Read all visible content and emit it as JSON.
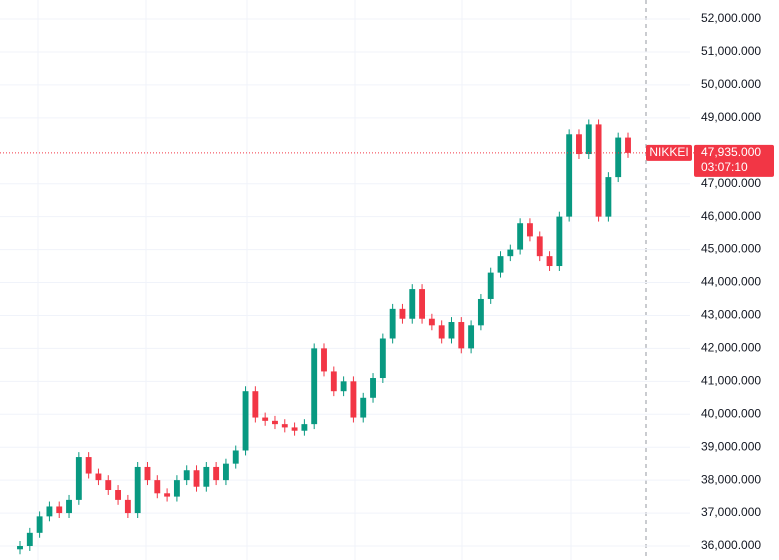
{
  "chart_data": {
    "type": "candlestick",
    "symbol": "NIKKEI",
    "countdown": "03:07:10",
    "last_price": {
      "value": 47935,
      "label": "47,935.000"
    },
    "up_color": "#089981",
    "down_color": "#f23645",
    "grid": true,
    "ylim": [
      35575,
      52577
    ],
    "yticks": [
      {
        "value": 36000,
        "label": "36,000.000"
      },
      {
        "value": 37000,
        "label": "37,000.000"
      },
      {
        "value": 38000,
        "label": "38,000.000"
      },
      {
        "value": 39000,
        "label": "39,000.000"
      },
      {
        "value": 40000,
        "label": "40,000.000"
      },
      {
        "value": 41000,
        "label": "41,000.000"
      },
      {
        "value": 42000,
        "label": "42,000.000"
      },
      {
        "value": 43000,
        "label": "43,000.000"
      },
      {
        "value": 44000,
        "label": "44,000.000"
      },
      {
        "value": 45000,
        "label": "45,000.000"
      },
      {
        "value": 46000,
        "label": "46,000.000"
      },
      {
        "value": 47000,
        "label": "47,000.000"
      },
      {
        "value": 49000,
        "label": "49,000.000"
      },
      {
        "value": 50000,
        "label": "50,000.000"
      },
      {
        "value": 51000,
        "label": "51,000.000"
      },
      {
        "value": 52000,
        "label": "52,000.000"
      }
    ],
    "open": [
      35900,
      36000,
      36400,
      36900,
      37200,
      37000,
      37400,
      38700,
      38200,
      38000,
      37700,
      37400,
      37000,
      38400,
      38000,
      37600,
      37500,
      38000,
      38300,
      37800,
      38400,
      38000,
      38500,
      38900,
      40700,
      39900,
      39800,
      39700,
      39600,
      39500,
      39700,
      42000,
      41300,
      40700,
      41000,
      39900,
      40500,
      41100,
      42300,
      43200,
      42900,
      43800,
      42900,
      42700,
      42300,
      42800,
      42000,
      42700,
      43500,
      44300,
      44800,
      45000,
      45800,
      45400,
      44800,
      44500,
      46000,
      48500,
      47900,
      48800,
      46000,
      47200,
      48400
    ],
    "high": [
      36150,
      36550,
      37050,
      37350,
      37350,
      37550,
      38850,
      38850,
      38350,
      38150,
      37850,
      37550,
      38550,
      38550,
      38150,
      37750,
      38150,
      38450,
      38450,
      38550,
      38550,
      38650,
      39050,
      40850,
      40850,
      40050,
      39950,
      39850,
      39750,
      39850,
      42150,
      42150,
      41450,
      41150,
      41150,
      40650,
      41250,
      42450,
      43350,
      43350,
      43950,
      43950,
      43050,
      42850,
      42950,
      42950,
      42850,
      43650,
      44450,
      44950,
      45150,
      45950,
      45950,
      45550,
      44950,
      46150,
      48650,
      48650,
      48950,
      48950,
      47350,
      48550,
      48550
    ],
    "low": [
      35750,
      35850,
      36250,
      36750,
      36850,
      36850,
      37250,
      38050,
      37850,
      37550,
      37250,
      36850,
      36850,
      37850,
      37450,
      37350,
      37350,
      37850,
      37650,
      37650,
      37850,
      37850,
      38350,
      38750,
      39750,
      39650,
      39550,
      39450,
      39350,
      39350,
      39550,
      41150,
      40550,
      40550,
      39750,
      39750,
      40350,
      40950,
      42150,
      42750,
      42750,
      42750,
      42550,
      42150,
      42150,
      41850,
      41850,
      42550,
      43350,
      44150,
      44650,
      44850,
      45250,
      44650,
      44350,
      44350,
      45850,
      47750,
      47750,
      45850,
      45850,
      47050,
      47785
    ],
    "close": [
      36000,
      36400,
      36900,
      37200,
      37000,
      37400,
      38700,
      38200,
      38000,
      37700,
      37400,
      37000,
      38400,
      38000,
      37600,
      37500,
      38000,
      38300,
      37800,
      38400,
      38000,
      38500,
      38900,
      40700,
      39900,
      39800,
      39700,
      39600,
      39500,
      39700,
      42000,
      41300,
      40700,
      41000,
      39900,
      40500,
      41100,
      42300,
      43200,
      42900,
      43800,
      42900,
      42700,
      42300,
      42800,
      42000,
      42700,
      43500,
      44300,
      44800,
      45000,
      45800,
      45400,
      44800,
      44500,
      46000,
      48500,
      47900,
      48800,
      46000,
      47200,
      48400,
      47935
    ]
  }
}
